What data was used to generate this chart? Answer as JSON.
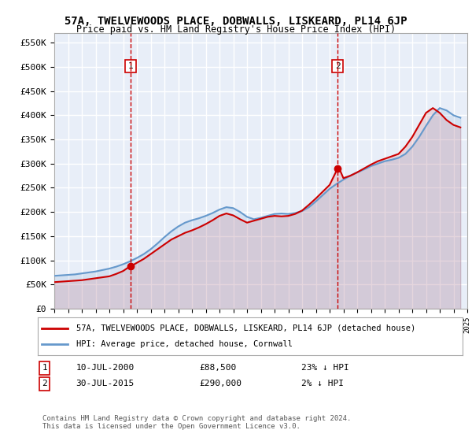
{
  "title": "57A, TWELVEWOODS PLACE, DOBWALLS, LISKEARD, PL14 6JP",
  "subtitle": "Price paid vs. HM Land Registry's House Price Index (HPI)",
  "legend_line1": "57A, TWELVEWOODS PLACE, DOBWALLS, LISKEARD, PL14 6JP (detached house)",
  "legend_line2": "HPI: Average price, detached house, Cornwall",
  "annotation1_label": "1",
  "annotation1_date": "10-JUL-2000",
  "annotation1_price": "£88,500",
  "annotation1_hpi": "23% ↓ HPI",
  "annotation1_year": 2000.54,
  "annotation1_value": 88500,
  "annotation2_label": "2",
  "annotation2_date": "30-JUL-2015",
  "annotation2_price": "£290,000",
  "annotation2_hpi": "2% ↓ HPI",
  "annotation2_year": 2015.58,
  "annotation2_value": 290000,
  "ylabel_ticks": [
    "£0",
    "£50K",
    "£100K",
    "£150K",
    "£200K",
    "£250K",
    "£300K",
    "£350K",
    "£400K",
    "£450K",
    "£500K",
    "£550K"
  ],
  "ytick_values": [
    0,
    50000,
    100000,
    150000,
    200000,
    250000,
    300000,
    350000,
    400000,
    450000,
    500000,
    550000
  ],
  "xmin": 1995,
  "xmax": 2025,
  "ymin": 0,
  "ymax": 570000,
  "background_color": "#e8eef8",
  "plot_bg_color": "#e8eef8",
  "red_line_color": "#cc0000",
  "blue_line_color": "#6699cc",
  "grid_color": "#ffffff",
  "copyright_text": "Contains HM Land Registry data © Crown copyright and database right 2024.\nThis data is licensed under the Open Government Licence v3.0.",
  "hpi_years": [
    1995,
    1995.5,
    1996,
    1996.5,
    1997,
    1997.5,
    1998,
    1998.5,
    1999,
    1999.5,
    2000,
    2000.5,
    2001,
    2001.5,
    2002,
    2002.5,
    2003,
    2003.5,
    2004,
    2004.5,
    2005,
    2005.5,
    2006,
    2006.5,
    2007,
    2007.5,
    2008,
    2008.5,
    2009,
    2009.5,
    2010,
    2010.5,
    2011,
    2011.5,
    2012,
    2012.5,
    2013,
    2013.5,
    2014,
    2014.5,
    2015,
    2015.5,
    2016,
    2016.5,
    2017,
    2017.5,
    2018,
    2018.5,
    2019,
    2019.5,
    2020,
    2020.5,
    2021,
    2021.5,
    2022,
    2022.5,
    2023,
    2023.5,
    2024,
    2024.5
  ],
  "hpi_values": [
    68000,
    69000,
    70000,
    71000,
    73000,
    75000,
    77000,
    80000,
    83000,
    87000,
    92000,
    98000,
    105000,
    113000,
    123000,
    135000,
    148000,
    160000,
    170000,
    178000,
    183000,
    187000,
    192000,
    198000,
    205000,
    210000,
    208000,
    200000,
    190000,
    185000,
    188000,
    192000,
    196000,
    197000,
    196000,
    198000,
    202000,
    210000,
    222000,
    235000,
    248000,
    258000,
    267000,
    275000,
    282000,
    288000,
    295000,
    300000,
    305000,
    308000,
    312000,
    320000,
    335000,
    355000,
    378000,
    400000,
    415000,
    410000,
    400000,
    395000
  ],
  "price_years": [
    1995,
    1995.5,
    1996,
    1996.5,
    1997,
    1997.5,
    1998,
    1998.5,
    1999,
    1999.5,
    2000,
    2000.54,
    2000.6,
    2001,
    2001.5,
    2002,
    2002.5,
    2003,
    2003.5,
    2004,
    2004.5,
    2005,
    2005.5,
    2006,
    2006.5,
    2007,
    2007.5,
    2008,
    2008.5,
    2009,
    2009.5,
    2010,
    2010.5,
    2011,
    2011.5,
    2012,
    2012.5,
    2013,
    2013.5,
    2014,
    2014.5,
    2015,
    2015.58,
    2015.7,
    2016,
    2016.5,
    2017,
    2017.5,
    2018,
    2018.5,
    2019,
    2019.5,
    2020,
    2020.5,
    2021,
    2021.5,
    2022,
    2022.5,
    2023,
    2023.5,
    2024,
    2024.5
  ],
  "price_values": [
    55000,
    56000,
    57000,
    58000,
    59000,
    61000,
    63000,
    65000,
    67000,
    72000,
    78000,
    88500,
    88500,
    95000,
    103000,
    113000,
    123000,
    133000,
    143000,
    150000,
    157000,
    162000,
    168000,
    175000,
    183000,
    192000,
    197000,
    193000,
    185000,
    178000,
    182000,
    186000,
    190000,
    192000,
    191000,
    192000,
    196000,
    203000,
    215000,
    228000,
    242000,
    256000,
    290000,
    290000,
    270000,
    275000,
    282000,
    290000,
    298000,
    305000,
    310000,
    315000,
    320000,
    335000,
    355000,
    380000,
    405000,
    415000,
    405000,
    390000,
    380000,
    375000
  ]
}
